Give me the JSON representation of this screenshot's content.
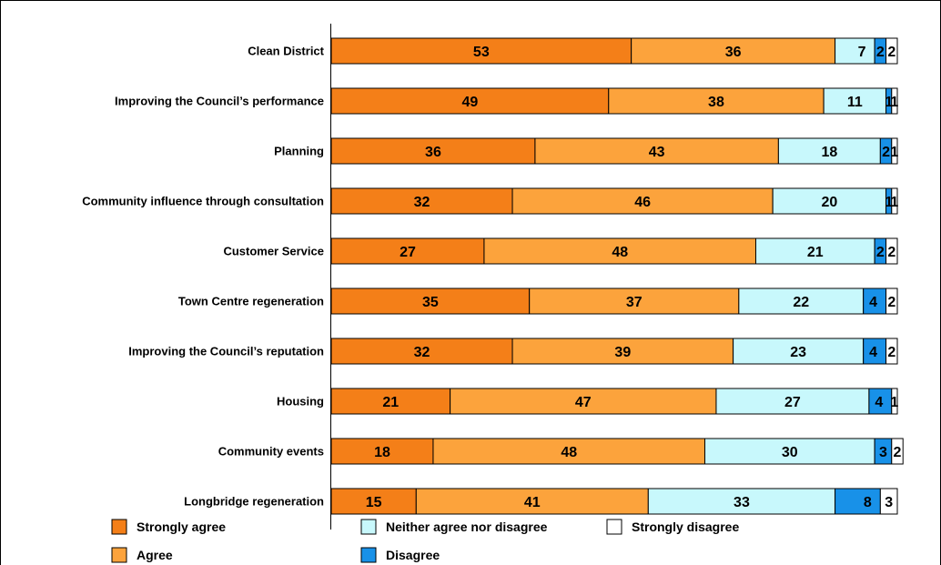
{
  "chart_data": {
    "type": "bar",
    "orientation": "horizontal",
    "stacked": true,
    "xlim": [
      0,
      100
    ],
    "categories": [
      "Clean District",
      "Improving the Council’s performance",
      "Planning",
      "Community influence through consultation",
      "Customer Service",
      "Town Centre regeneration",
      "Improving the Council’s reputation",
      "Housing",
      "Community events",
      "Longbridge regeneration"
    ],
    "series": [
      {
        "name": "Strongly agree",
        "color": "#f47f18",
        "values": [
          53,
          49,
          36,
          32,
          27,
          35,
          32,
          21,
          18,
          15
        ]
      },
      {
        "name": "Agree",
        "color": "#fca33c",
        "values": [
          36,
          38,
          43,
          46,
          48,
          37,
          39,
          47,
          48,
          41
        ]
      },
      {
        "name": "Neither agree nor disagree",
        "color": "#c8f8fc",
        "values": [
          7,
          11,
          18,
          20,
          21,
          22,
          23,
          27,
          30,
          33
        ]
      },
      {
        "name": "Disagree",
        "color": "#1891e8",
        "values": [
          2,
          1,
          2,
          1,
          2,
          4,
          4,
          4,
          3,
          8
        ]
      },
      {
        "name": "Strongly disagree",
        "color": "#ffffff",
        "values": [
          2,
          1,
          1,
          1,
          2,
          2,
          2,
          1,
          2,
          3
        ]
      }
    ],
    "legend": {
      "placement": "bottom",
      "order": [
        "Strongly agree",
        "Neither agree nor disagree",
        "Strongly disagree",
        "Agree",
        "Disagree"
      ]
    },
    "grid": false
  }
}
